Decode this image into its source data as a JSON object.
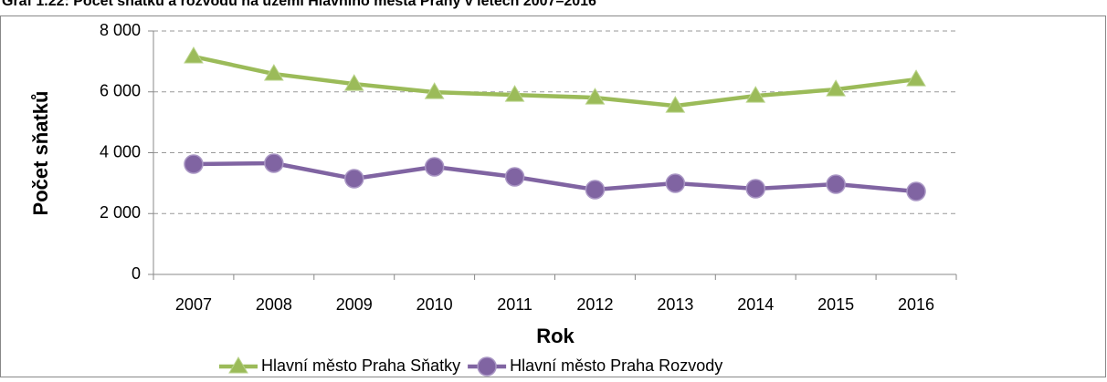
{
  "chart_data": {
    "type": "line",
    "title": "Graf 1.22: Počet sňatků a rozvodů na území Hlavního města Prahy v letech 2007–2016",
    "x_label": "Rok",
    "y_label": "Počet sňatků",
    "categories": [
      "2007",
      "2008",
      "2009",
      "2010",
      "2011",
      "2012",
      "2013",
      "2014",
      "2015",
      "2016"
    ],
    "series": [
      {
        "name": "Hlavní město Praha Sňatky",
        "color": "#9bbb59",
        "marker": "triangle",
        "values": [
          7160,
          6590,
          6260,
          5990,
          5900,
          5810,
          5540,
          5870,
          6080,
          6410
        ]
      },
      {
        "name": "Hlavní město Praha Rozvody",
        "color": "#8064a2",
        "marker": "circle",
        "values": [
          3625,
          3655,
          3146,
          3535,
          3206,
          2786,
          2996,
          2816,
          2966,
          2726
        ]
      }
    ],
    "ylim": [
      0,
      8000
    ],
    "yticks": [
      0,
      {
        "value": 2000,
        "label": "2 000"
      },
      {
        "value": 4000,
        "label": "4 000"
      },
      {
        "value": 6000,
        "label": "6 000"
      },
      {
        "value": 8000,
        "label": "8 000"
      }
    ],
    "grid": true,
    "legend": "bottom"
  }
}
